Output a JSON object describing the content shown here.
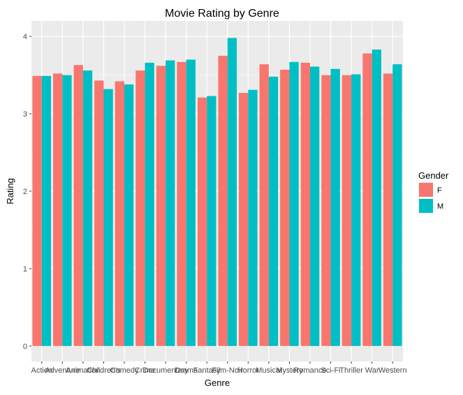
{
  "chart_data": {
    "type": "bar",
    "title": "Movie Rating by Genre",
    "xlabel": "Genre",
    "ylabel": "Rating",
    "categories": [
      "Action",
      "Adventure",
      "Animation",
      "Children's",
      "Comedy",
      "Crime",
      "Documentary",
      "Drama",
      "Fantasy",
      "Film-Noir",
      "Horror",
      "Musical",
      "Mystery",
      "Romance",
      "Sci-Fi",
      "Thriller",
      "War",
      "Western"
    ],
    "series": [
      {
        "name": "F",
        "color": "#f8766d",
        "values": [
          3.49,
          3.52,
          3.63,
          3.43,
          3.42,
          3.56,
          3.62,
          3.67,
          3.21,
          3.75,
          3.27,
          3.64,
          3.57,
          3.66,
          3.5,
          3.5,
          3.78,
          3.52
        ]
      },
      {
        "name": "M",
        "color": "#00bfc4",
        "values": [
          3.49,
          3.5,
          3.56,
          3.32,
          3.38,
          3.66,
          3.69,
          3.7,
          3.23,
          3.98,
          3.31,
          3.48,
          3.67,
          3.61,
          3.58,
          3.51,
          3.83,
          3.64
        ]
      }
    ],
    "yticks": [
      0,
      1,
      2,
      3,
      4
    ],
    "ylim": [
      -0.2,
      4.2
    ],
    "grid": true,
    "panel_background": "#ebebeb",
    "grid_color": "#ffffff",
    "legend": {
      "title": "Gender",
      "position": "right",
      "entries": [
        "F",
        "M"
      ]
    }
  }
}
